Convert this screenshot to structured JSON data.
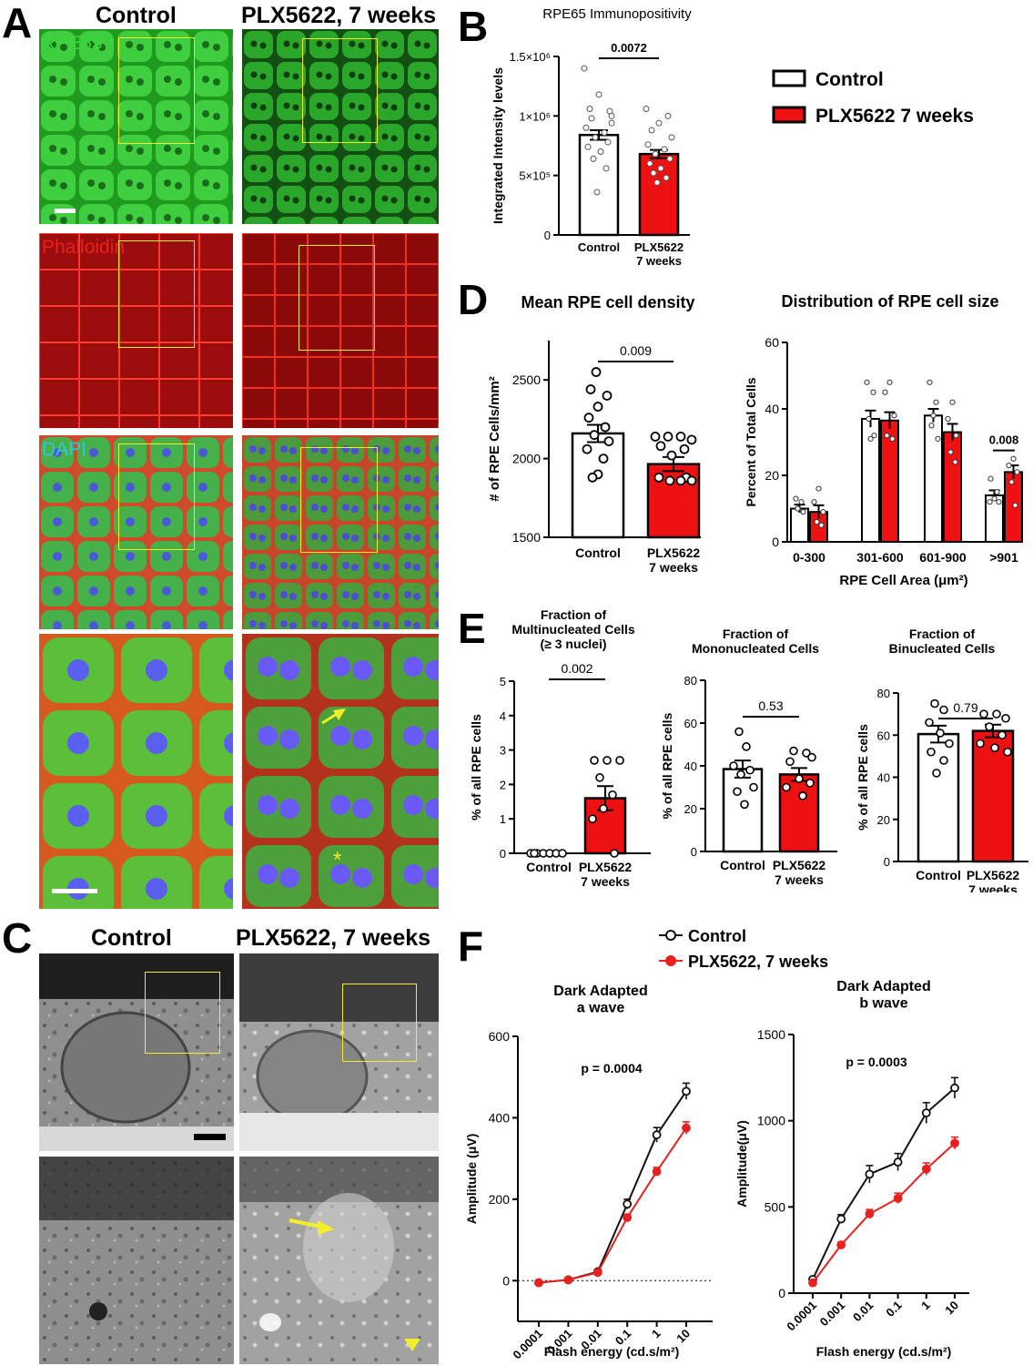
{
  "panel_letters": [
    "A",
    "B",
    "C",
    "D",
    "E",
    "F"
  ],
  "panel_a": {
    "col_headers": [
      "Control",
      "PLX5622, 7 weeks"
    ],
    "channels": [
      "RPE65",
      "Phalloidin",
      "DAPI"
    ],
    "channel_colors": [
      "#39d83c",
      "#e8201f",
      "#33c5d6"
    ]
  },
  "panel_c": {
    "col_headers": [
      "Control",
      "PLX5622, 7 weeks"
    ]
  },
  "colors": {
    "control": "#ffffff",
    "plx": "#ee1111",
    "line_control": "#111111",
    "line_plx": "#e8201f"
  },
  "chart_data": [
    {
      "id": "B",
      "type": "bar",
      "title": "RPE65 Immunopositivity",
      "ylabel": "Integrated Intensity levels",
      "ylim": [
        0,
        1500000
      ],
      "yticks": [
        "0",
        "5×10⁵",
        "1×10⁶",
        "1.5×10⁶"
      ],
      "categories": [
        "Control",
        "PLX5622\n7 weeks"
      ],
      "values": [
        840000,
        680000
      ],
      "sem": [
        40000,
        35000
      ],
      "p_label": "0.0072",
      "legend": [
        "Control",
        "PLX5622 7 weeks"
      ]
    },
    {
      "id": "D1",
      "type": "bar",
      "title": "Mean RPE cell density",
      "ylabel": "# of RPE Cells/mm²",
      "ylim": [
        1500,
        2750
      ],
      "yticks": [
        "1500",
        "2000",
        "2500"
      ],
      "categories": [
        "Control",
        "PLX5622\n7 weeks"
      ],
      "values": [
        2160,
        1965
      ],
      "sem": [
        55,
        45
      ],
      "p_label": "0.009"
    },
    {
      "id": "D2",
      "type": "bar",
      "title": "Distribution of RPE cell size",
      "xlabel": "RPE Cell Area (μm²)",
      "ylabel": "Percent of Total Cells",
      "ylim": [
        0,
        60
      ],
      "yticks": [
        "0",
        "20",
        "40",
        "60"
      ],
      "categories": [
        "0-300",
        "301-600",
        "601-900",
        ">901"
      ],
      "series": [
        {
          "name": "Control",
          "values": [
            10,
            37,
            38,
            14
          ],
          "sem": [
            1.2,
            2.5,
            2.0,
            1.5
          ]
        },
        {
          "name": "PLX5622 7 weeks",
          "values": [
            9,
            36.5,
            33,
            21
          ],
          "sem": [
            2.0,
            2.5,
            2.5,
            2.0
          ]
        }
      ],
      "p_label": "0.008"
    },
    {
      "id": "E1",
      "type": "bar",
      "title": "Fraction of\nMultinucleated Cells\n(≥ 3 nuclei)",
      "ylabel": "% of all RPE cells",
      "ylim": [
        0,
        5
      ],
      "yticks": [
        "0",
        "1",
        "2",
        "3",
        "4",
        "5"
      ],
      "categories": [
        "Control",
        "PLX5622\n7 weeks"
      ],
      "values": [
        0,
        1.6
      ],
      "sem": [
        0,
        0.35
      ],
      "p_label": "0.002"
    },
    {
      "id": "E2",
      "type": "bar",
      "title": "Fraction of\nMononucleated Cells",
      "ylabel": "% of all RPE cells",
      "ylim": [
        0,
        80
      ],
      "yticks": [
        "0",
        "20",
        "40",
        "60",
        "80"
      ],
      "categories": [
        "Control",
        "PLX5622\n7 weeks"
      ],
      "values": [
        38.5,
        36
      ],
      "sem": [
        4,
        3
      ],
      "p_label": "0.53"
    },
    {
      "id": "E3",
      "type": "bar",
      "title": "Fraction of\nBinucleated Cells",
      "ylabel": "% of all RPE cells",
      "ylim": [
        0,
        80
      ],
      "yticks": [
        "0",
        "20",
        "40",
        "60",
        "80"
      ],
      "categories": [
        "Control",
        "PLX5622\n7 weeks"
      ],
      "values": [
        60.5,
        62
      ],
      "sem": [
        4,
        3
      ],
      "p_label": "0.79"
    },
    {
      "id": "F1",
      "type": "line",
      "title": "Dark Adapted\na wave",
      "xlabel": "Flash energy (cd.s/m²)",
      "ylabel": "Amplitude (μV)",
      "x": [
        "0.0001",
        "0.001",
        "0.01",
        "0.1",
        "1",
        "10"
      ],
      "ylim": [
        -100,
        600
      ],
      "yticks": [
        "0",
        "200",
        "400",
        "600"
      ],
      "series": [
        {
          "name": "Control",
          "values": [
            -5,
            2,
            22,
            188,
            358,
            465
          ],
          "sem": [
            2,
            2,
            4,
            12,
            18,
            20
          ]
        },
        {
          "name": "PLX5622, 7 weeks",
          "values": [
            -5,
            2,
            20,
            155,
            268,
            375
          ],
          "sem": [
            2,
            2,
            4,
            8,
            10,
            15
          ]
        }
      ],
      "p_label": "p = 0.0004"
    },
    {
      "id": "F2",
      "type": "line",
      "title": "Dark Adapted\nb wave",
      "xlabel": "Flash energy (cd.s/m²)",
      "ylabel": "Amplitude(μV)",
      "x": [
        "0.0001",
        "0.001",
        "0.01",
        "0.1",
        "1",
        "10"
      ],
      "ylim": [
        0,
        1500
      ],
      "yticks": [
        "0",
        "500",
        "1000",
        "1500"
      ],
      "series": [
        {
          "name": "Control",
          "values": [
            80,
            430,
            690,
            760,
            1045,
            1190
          ],
          "sem": [
            10,
            25,
            50,
            50,
            60,
            60
          ]
        },
        {
          "name": "PLX5622, 7 weeks",
          "values": [
            60,
            280,
            460,
            550,
            720,
            870
          ],
          "sem": [
            8,
            15,
            25,
            30,
            35,
            35
          ]
        }
      ],
      "p_label": "p = 0.0003",
      "legend": [
        "Control",
        "PLX5622, 7 weeks"
      ]
    }
  ]
}
